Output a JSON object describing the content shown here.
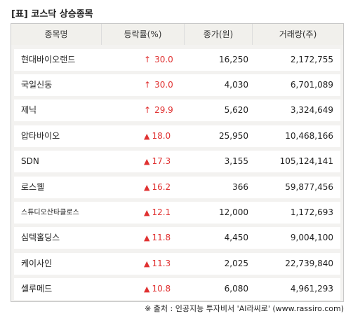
{
  "title": "[표] 코스닥 상승종목",
  "columns": {
    "name": "종목명",
    "rate": "등락률(%)",
    "price": "종가(원)",
    "volume": "거래량(주)"
  },
  "rows": [
    {
      "name": "현대바이오랜드",
      "arrow": "↑",
      "rate": "30.0",
      "price": "16,250",
      "volume": "2,172,755"
    },
    {
      "name": "국일신동",
      "arrow": "↑",
      "rate": "30.0",
      "price": "4,030",
      "volume": "6,701,089"
    },
    {
      "name": "제닉",
      "arrow": "↑",
      "rate": "29.9",
      "price": "5,620",
      "volume": "3,324,649"
    },
    {
      "name": "압타바이오",
      "arrow": "▲",
      "rate": "18.0",
      "price": "25,950",
      "volume": "10,468,166"
    },
    {
      "name": "SDN",
      "arrow": "▲",
      "rate": "17.3",
      "price": "3,155",
      "volume": "105,124,141"
    },
    {
      "name": "로스웰",
      "arrow": "▲",
      "rate": "16.2",
      "price": "366",
      "volume": "59,877,456"
    },
    {
      "name": "스튜디오산타클로스",
      "arrow": "▲",
      "rate": "12.1",
      "price": "12,000",
      "volume": "1,172,693"
    },
    {
      "name": "심텍홀딩스",
      "arrow": "▲",
      "rate": "11.8",
      "price": "4,450",
      "volume": "9,004,100"
    },
    {
      "name": "케이사인",
      "arrow": "▲",
      "rate": "11.3",
      "price": "2,025",
      "volume": "22,739,840"
    },
    {
      "name": "셀루메드",
      "arrow": "▲",
      "rate": "10.8",
      "price": "6,080",
      "volume": "4,961,293"
    }
  ],
  "footer": "※ 출처 : 인공지능 투자비서 'AI라씨로' (www.rassiro.com)"
}
